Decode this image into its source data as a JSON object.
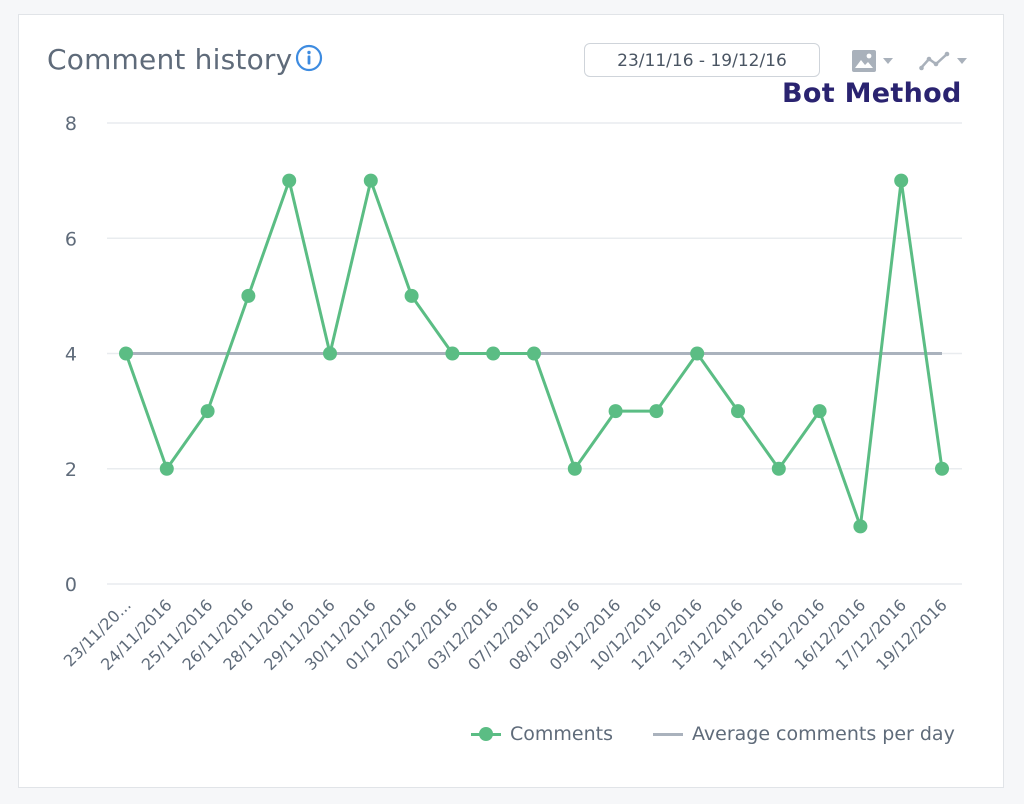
{
  "header": {
    "title": "Comment history",
    "date_range": "23/11/16 - 19/12/16",
    "watermark": "Bot Method"
  },
  "toolbar": {
    "image_tool_icon": "image-icon",
    "chart_type_icon": "line-chart-icon",
    "info_icon": "info-icon"
  },
  "colors": {
    "comments": "#5bbd84",
    "average": "#aab2bd",
    "grid": "#e9ecef",
    "axis_text": "#5f6b7a",
    "info": "#3d8be0"
  },
  "chart_data": {
    "type": "line",
    "categories": [
      "23/11/20...",
      "24/11/2016",
      "25/11/2016",
      "26/11/2016",
      "28/11/2016",
      "29/11/2016",
      "30/11/2016",
      "01/12/2016",
      "02/12/2016",
      "03/12/2016",
      "07/12/2016",
      "08/12/2016",
      "09/12/2016",
      "10/12/2016",
      "12/12/2016",
      "13/12/2016",
      "14/12/2016",
      "15/12/2016",
      "16/12/2016",
      "17/12/2016",
      "19/12/2016"
    ],
    "series": [
      {
        "name": "Comments",
        "values": [
          4,
          2,
          3,
          5,
          7,
          4,
          7,
          5,
          4,
          4,
          4,
          2,
          3,
          3,
          4,
          3,
          2,
          3,
          1,
          7,
          2
        ]
      },
      {
        "name": "Average comments per day",
        "values": [
          4,
          4,
          4,
          4,
          4,
          4,
          4,
          4,
          4,
          4,
          4,
          4,
          4,
          4,
          4,
          4,
          4,
          4,
          4,
          4,
          4
        ]
      }
    ],
    "yticks": [
      0,
      2,
      4,
      6,
      8
    ],
    "ylim": [
      0,
      8
    ],
    "grid": true,
    "legend": "bottom-right"
  }
}
